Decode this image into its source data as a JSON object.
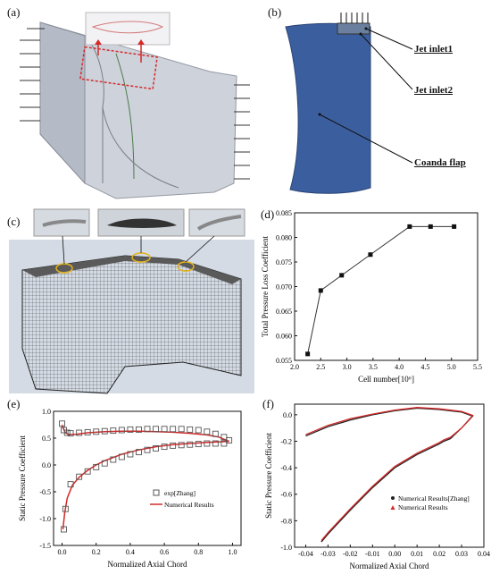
{
  "panels": {
    "a": {
      "label": "(a)"
    },
    "b": {
      "label": "(b)",
      "labels": [
        "Jet inlet1",
        "Jet inlet2",
        "Coanda flap"
      ]
    },
    "c": {
      "label": "(c)"
    },
    "d": {
      "label": "(d)"
    },
    "e": {
      "label": "(e)"
    },
    "f": {
      "label": "(f)"
    }
  },
  "colors": {
    "sky": "#c9d2de",
    "mesh": "#3a3a3a",
    "blade": "#3b5f9e",
    "red": "#d42a2a",
    "black": "#111111"
  },
  "chart_data": [
    {
      "panel": "d",
      "type": "line",
      "xlabel": "Cell number[10⁶]",
      "ylabel": "Total Pressure Loss Coefficient",
      "xlim": [
        2.0,
        5.5
      ],
      "ylim": [
        0.055,
        0.085
      ],
      "xticks": [
        "2.0",
        "2.5",
        "3.0",
        "3.5",
        "4.0",
        "4.5",
        "5.0",
        "5.5"
      ],
      "yticks": [
        "0.055",
        "0.060",
        "0.065",
        "0.070",
        "0.075",
        "0.080",
        "0.085"
      ],
      "series": [
        {
          "x": [
            2.25,
            2.5,
            2.9,
            3.45,
            4.2,
            4.6,
            5.05
          ],
          "y": [
            0.0563,
            0.0692,
            0.0723,
            0.0765,
            0.0822,
            0.0822,
            0.0822
          ]
        }
      ]
    },
    {
      "panel": "e",
      "type": "line",
      "xlabel": "Normalized Axial Chord",
      "ylabel": "Static Pressure Coefficient",
      "xlim": [
        -0.05,
        1.05
      ],
      "ylim": [
        -1.5,
        1.0
      ],
      "xticks": [
        "0.0",
        "0.2",
        "0.4",
        "0.6",
        "0.8",
        "1.0"
      ],
      "yticks": [
        "1.0",
        "0.5",
        "0.0",
        "-0.5",
        "-1.0",
        "-1.5"
      ],
      "legend": [
        "exp[Zhang]",
        "Numerical Results"
      ],
      "series": [
        {
          "name": "exp[Zhang]",
          "x": [
            0.0,
            0.01,
            0.03,
            0.05,
            0.1,
            0.15,
            0.2,
            0.25,
            0.3,
            0.35,
            0.4,
            0.45,
            0.5,
            0.55,
            0.6,
            0.65,
            0.7,
            0.75,
            0.8,
            0.85,
            0.9,
            0.95,
            0.98,
            0.01,
            0.02,
            0.05,
            0.1,
            0.15,
            0.2,
            0.25,
            0.3,
            0.35,
            0.4,
            0.45,
            0.5,
            0.55,
            0.6,
            0.65,
            0.7,
            0.75,
            0.8,
            0.85,
            0.9,
            0.95
          ],
          "y": [
            0.77,
            0.65,
            0.6,
            0.59,
            0.6,
            0.61,
            0.62,
            0.63,
            0.64,
            0.65,
            0.66,
            0.66,
            0.67,
            0.67,
            0.67,
            0.67,
            0.67,
            0.66,
            0.65,
            0.62,
            0.58,
            0.52,
            0.46,
            -1.2,
            -0.82,
            -0.36,
            -0.22,
            -0.12,
            -0.04,
            0.03,
            0.1,
            0.15,
            0.2,
            0.24,
            0.28,
            0.31,
            0.34,
            0.36,
            0.37,
            0.38,
            0.39,
            0.4,
            0.4,
            0.4
          ]
        },
        {
          "name": "Numerical Results",
          "x": [
            0.0,
            0.01,
            0.02,
            0.04,
            0.08,
            0.15,
            0.25,
            0.35,
            0.45,
            0.55,
            0.65,
            0.75,
            0.85,
            0.92,
            0.98,
            0.98,
            0.92,
            0.85,
            0.75,
            0.65,
            0.55,
            0.45,
            0.35,
            0.25,
            0.2,
            0.15,
            0.1,
            0.06,
            0.03,
            0.015,
            0.005
          ],
          "y": [
            0.75,
            0.66,
            0.6,
            0.57,
            0.57,
            0.6,
            0.62,
            0.63,
            0.63,
            0.62,
            0.61,
            0.59,
            0.56,
            0.52,
            0.44,
            0.44,
            0.43,
            0.42,
            0.4,
            0.38,
            0.34,
            0.28,
            0.2,
            0.08,
            0.0,
            -0.1,
            -0.23,
            -0.38,
            -0.62,
            -0.9,
            -1.2
          ]
        }
      ]
    },
    {
      "panel": "f",
      "type": "line",
      "xlabel": "Normalized Axial Chord",
      "ylabel": "Static Pressure Coefficient",
      "xlim": [
        -0.045,
        0.04
      ],
      "ylim": [
        -1.0,
        0.08
      ],
      "xticks": [
        "-0.04",
        "-0.03",
        "-0.02",
        "-0.01",
        "0.00",
        "0.01",
        "0.02",
        "0.03",
        "0.04"
      ],
      "yticks": [
        "0.0",
        "-0.2",
        "-0.4",
        "-0.6",
        "-0.8",
        "-1.0"
      ],
      "legend": [
        "Numerical Results[Zhang]",
        "Numerical Results"
      ],
      "series": [
        {
          "name": "Numerical Results[Zhang]",
          "x": [
            -0.04,
            -0.03,
            -0.02,
            -0.01,
            0.0,
            0.01,
            0.02,
            0.03,
            0.035,
            0.03,
            0.025,
            0.022,
            0.02,
            0.01,
            0.0,
            -0.01,
            -0.02,
            -0.03,
            -0.033
          ],
          "y": [
            -0.16,
            -0.09,
            -0.04,
            0.0,
            0.03,
            0.05,
            0.04,
            0.02,
            -0.01,
            -0.1,
            -0.18,
            -0.2,
            -0.22,
            -0.3,
            -0.4,
            -0.55,
            -0.72,
            -0.9,
            -0.96
          ]
        },
        {
          "name": "Numerical Results",
          "x": [
            -0.04,
            -0.03,
            -0.02,
            -0.01,
            0.0,
            0.01,
            0.02,
            0.03,
            0.035,
            0.03,
            0.025,
            0.022,
            0.02,
            0.01,
            0.0,
            -0.01,
            -0.02,
            -0.03,
            -0.033
          ],
          "y": [
            -0.15,
            -0.08,
            -0.03,
            0.005,
            0.035,
            0.055,
            0.045,
            0.025,
            -0.005,
            -0.1,
            -0.17,
            -0.19,
            -0.21,
            -0.29,
            -0.39,
            -0.54,
            -0.71,
            -0.89,
            -0.95
          ]
        }
      ]
    }
  ]
}
